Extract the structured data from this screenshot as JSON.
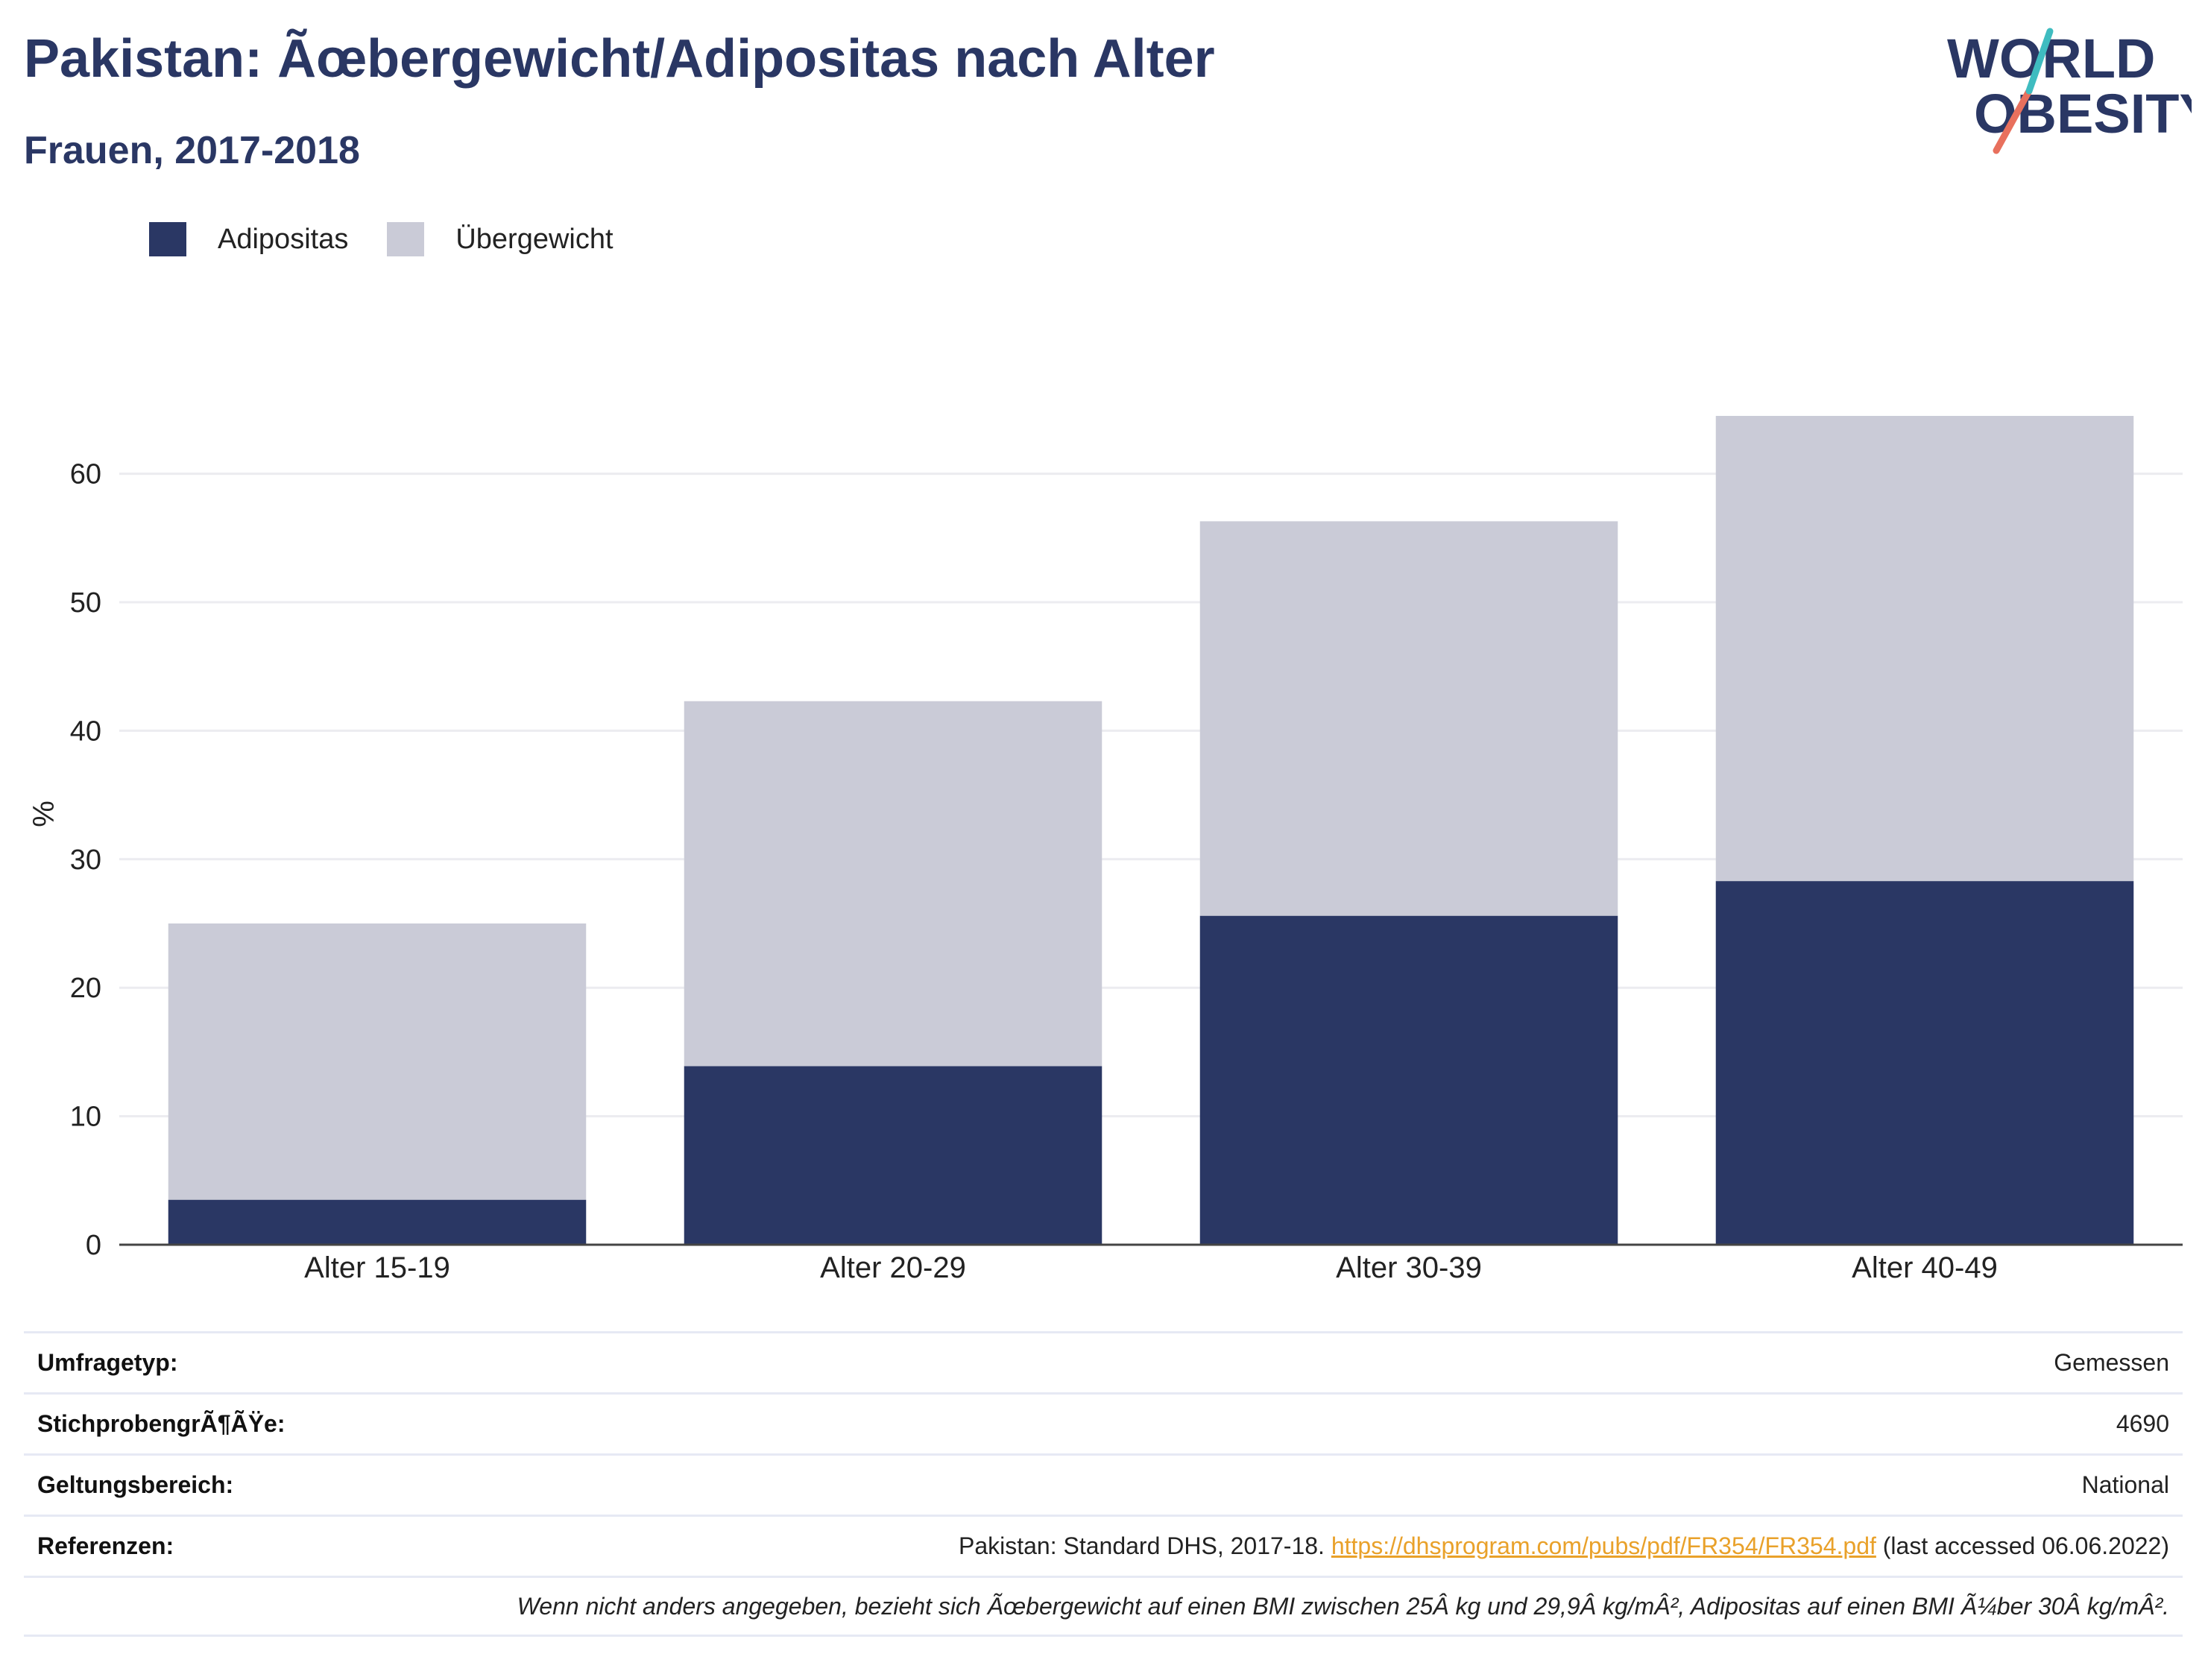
{
  "header": {
    "title": "Pakistan: Ãœbergewicht/Adipositas nach Alter",
    "subtitle": "Frauen, 2017-2018"
  },
  "logo": {
    "line1": "WORLD",
    "line2": "OBESITY"
  },
  "colors": {
    "adipositas": "#2a3764",
    "uebergewicht": "#cacbd7",
    "brand": "#2a3764",
    "link": "#e9a12a"
  },
  "chart_data": {
    "type": "bar",
    "stacked": true,
    "categories": [
      "Alter 15-19",
      "Alter 20-29",
      "Alter 30-39",
      "Alter 40-49"
    ],
    "series": [
      {
        "name": "Adipositas",
        "values": [
          3.5,
          13.9,
          25.6,
          28.3
        ]
      },
      {
        "name": "Übergewicht",
        "values": [
          21.5,
          28.4,
          30.7,
          36.2
        ]
      }
    ],
    "ylabel": "%",
    "ylim": [
      0,
      65
    ],
    "yticks": [
      0,
      10,
      20,
      30,
      40,
      50,
      60
    ],
    "grid": true,
    "legend_position": "top-left"
  },
  "info": {
    "rows": [
      {
        "key": "Umfragetyp:",
        "value": "Gemessen"
      },
      {
        "key": "StichprobengrÃ¶ÃŸe:",
        "value": "4690"
      },
      {
        "key": "Geltungsbereich:",
        "value": "National"
      }
    ],
    "references": {
      "key": "Referenzen:",
      "prefix": "Pakistan: Standard DHS, 2017-18.",
      "link": "https://dhsprogram.com/pubs/pdf/FR354/FR354.pdf",
      "suffix": "(last accessed 06.06.2022)"
    },
    "note": "Wenn nicht anders angegeben, bezieht sich Ãœbergewicht auf einen BMI zwischen 25Â kg und 29,9Â kg/mÂ², Adipositas auf einen BMI Ã¼ber 30Â kg/mÂ²."
  }
}
